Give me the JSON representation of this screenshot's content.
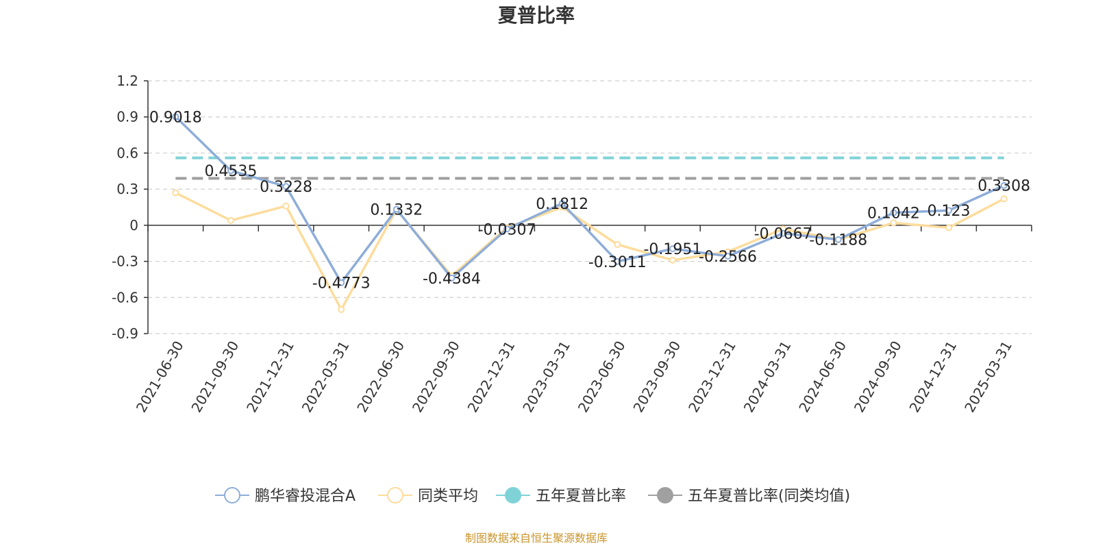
{
  "chart_data": {
    "type": "line",
    "title": "夏普比率",
    "categories": [
      "2021-06-30",
      "2021-09-30",
      "2021-12-31",
      "2022-03-31",
      "2022-06-30",
      "2022-09-30",
      "2022-12-31",
      "2023-03-31",
      "2023-06-30",
      "2023-09-30",
      "2023-12-31",
      "2024-03-31",
      "2024-06-30",
      "2024-09-30",
      "2024-12-31",
      "2025-03-31"
    ],
    "yticks": [
      "1.2",
      "0.9",
      "0.6",
      "0.3",
      "0",
      "-0.3",
      "-0.6",
      "-0.9"
    ],
    "ylim": [
      -0.9,
      1.2
    ],
    "grid": true,
    "legend_position": "bottom",
    "series": [
      {
        "name": "鹏华睿投混合A",
        "color": "#8eadd9",
        "values": [
          0.9018,
          0.4535,
          0.3228,
          -0.4773,
          0.1332,
          -0.4384,
          -0.0307,
          0.1812,
          -0.3011,
          -0.1951,
          -0.2566,
          -0.0667,
          -0.1188,
          0.1042,
          0.123,
          0.3308
        ],
        "labels": [
          "0.9018",
          "0.4535",
          "0.3228",
          "-0.4773",
          "0.1332",
          "-0.4384",
          "-0.0307",
          "0.1812",
          "-0.3011",
          "-0.1951",
          "-0.2566",
          "-0.0667",
          "-0.1188",
          "0.1042",
          "0.123",
          "0.3308"
        ]
      },
      {
        "name": "同类平均",
        "color": "#fddc9c",
        "values": [
          0.27,
          0.04,
          0.16,
          -0.7,
          0.13,
          -0.42,
          -0.02,
          0.15,
          -0.16,
          -0.29,
          -0.22,
          -0.03,
          -0.12,
          0.02,
          -0.02,
          0.22
        ]
      }
    ],
    "reference_lines": [
      {
        "name": "五年夏普比率",
        "value": 0.56,
        "color": "#7fd3d7"
      },
      {
        "name": "五年夏普比率(同类均值)",
        "value": 0.39,
        "color": "#a0a0a0"
      }
    ],
    "source": "制图数据来自恒生聚源数据库"
  }
}
